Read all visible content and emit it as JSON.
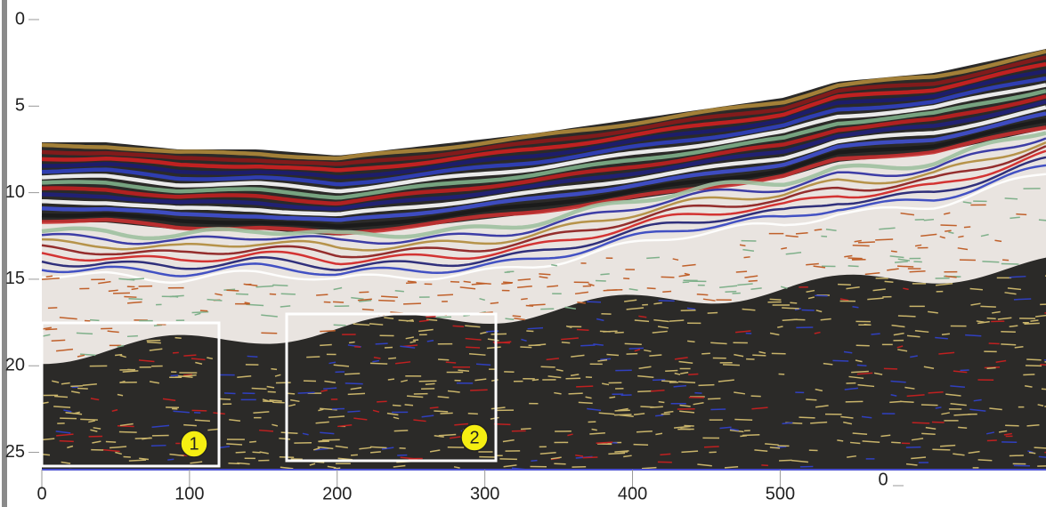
{
  "chart_data": {
    "type": "radargram",
    "xlim": [
      0,
      680
    ],
    "xticks": [
      0,
      100,
      200,
      300,
      400,
      500
    ],
    "ylim": [
      0,
      26
    ],
    "yticks": [
      0,
      5,
      10,
      15,
      20,
      25
    ],
    "y_inverted": true,
    "box_labels": [
      "1",
      "2"
    ],
    "secondary_axis_label": "0"
  }
}
